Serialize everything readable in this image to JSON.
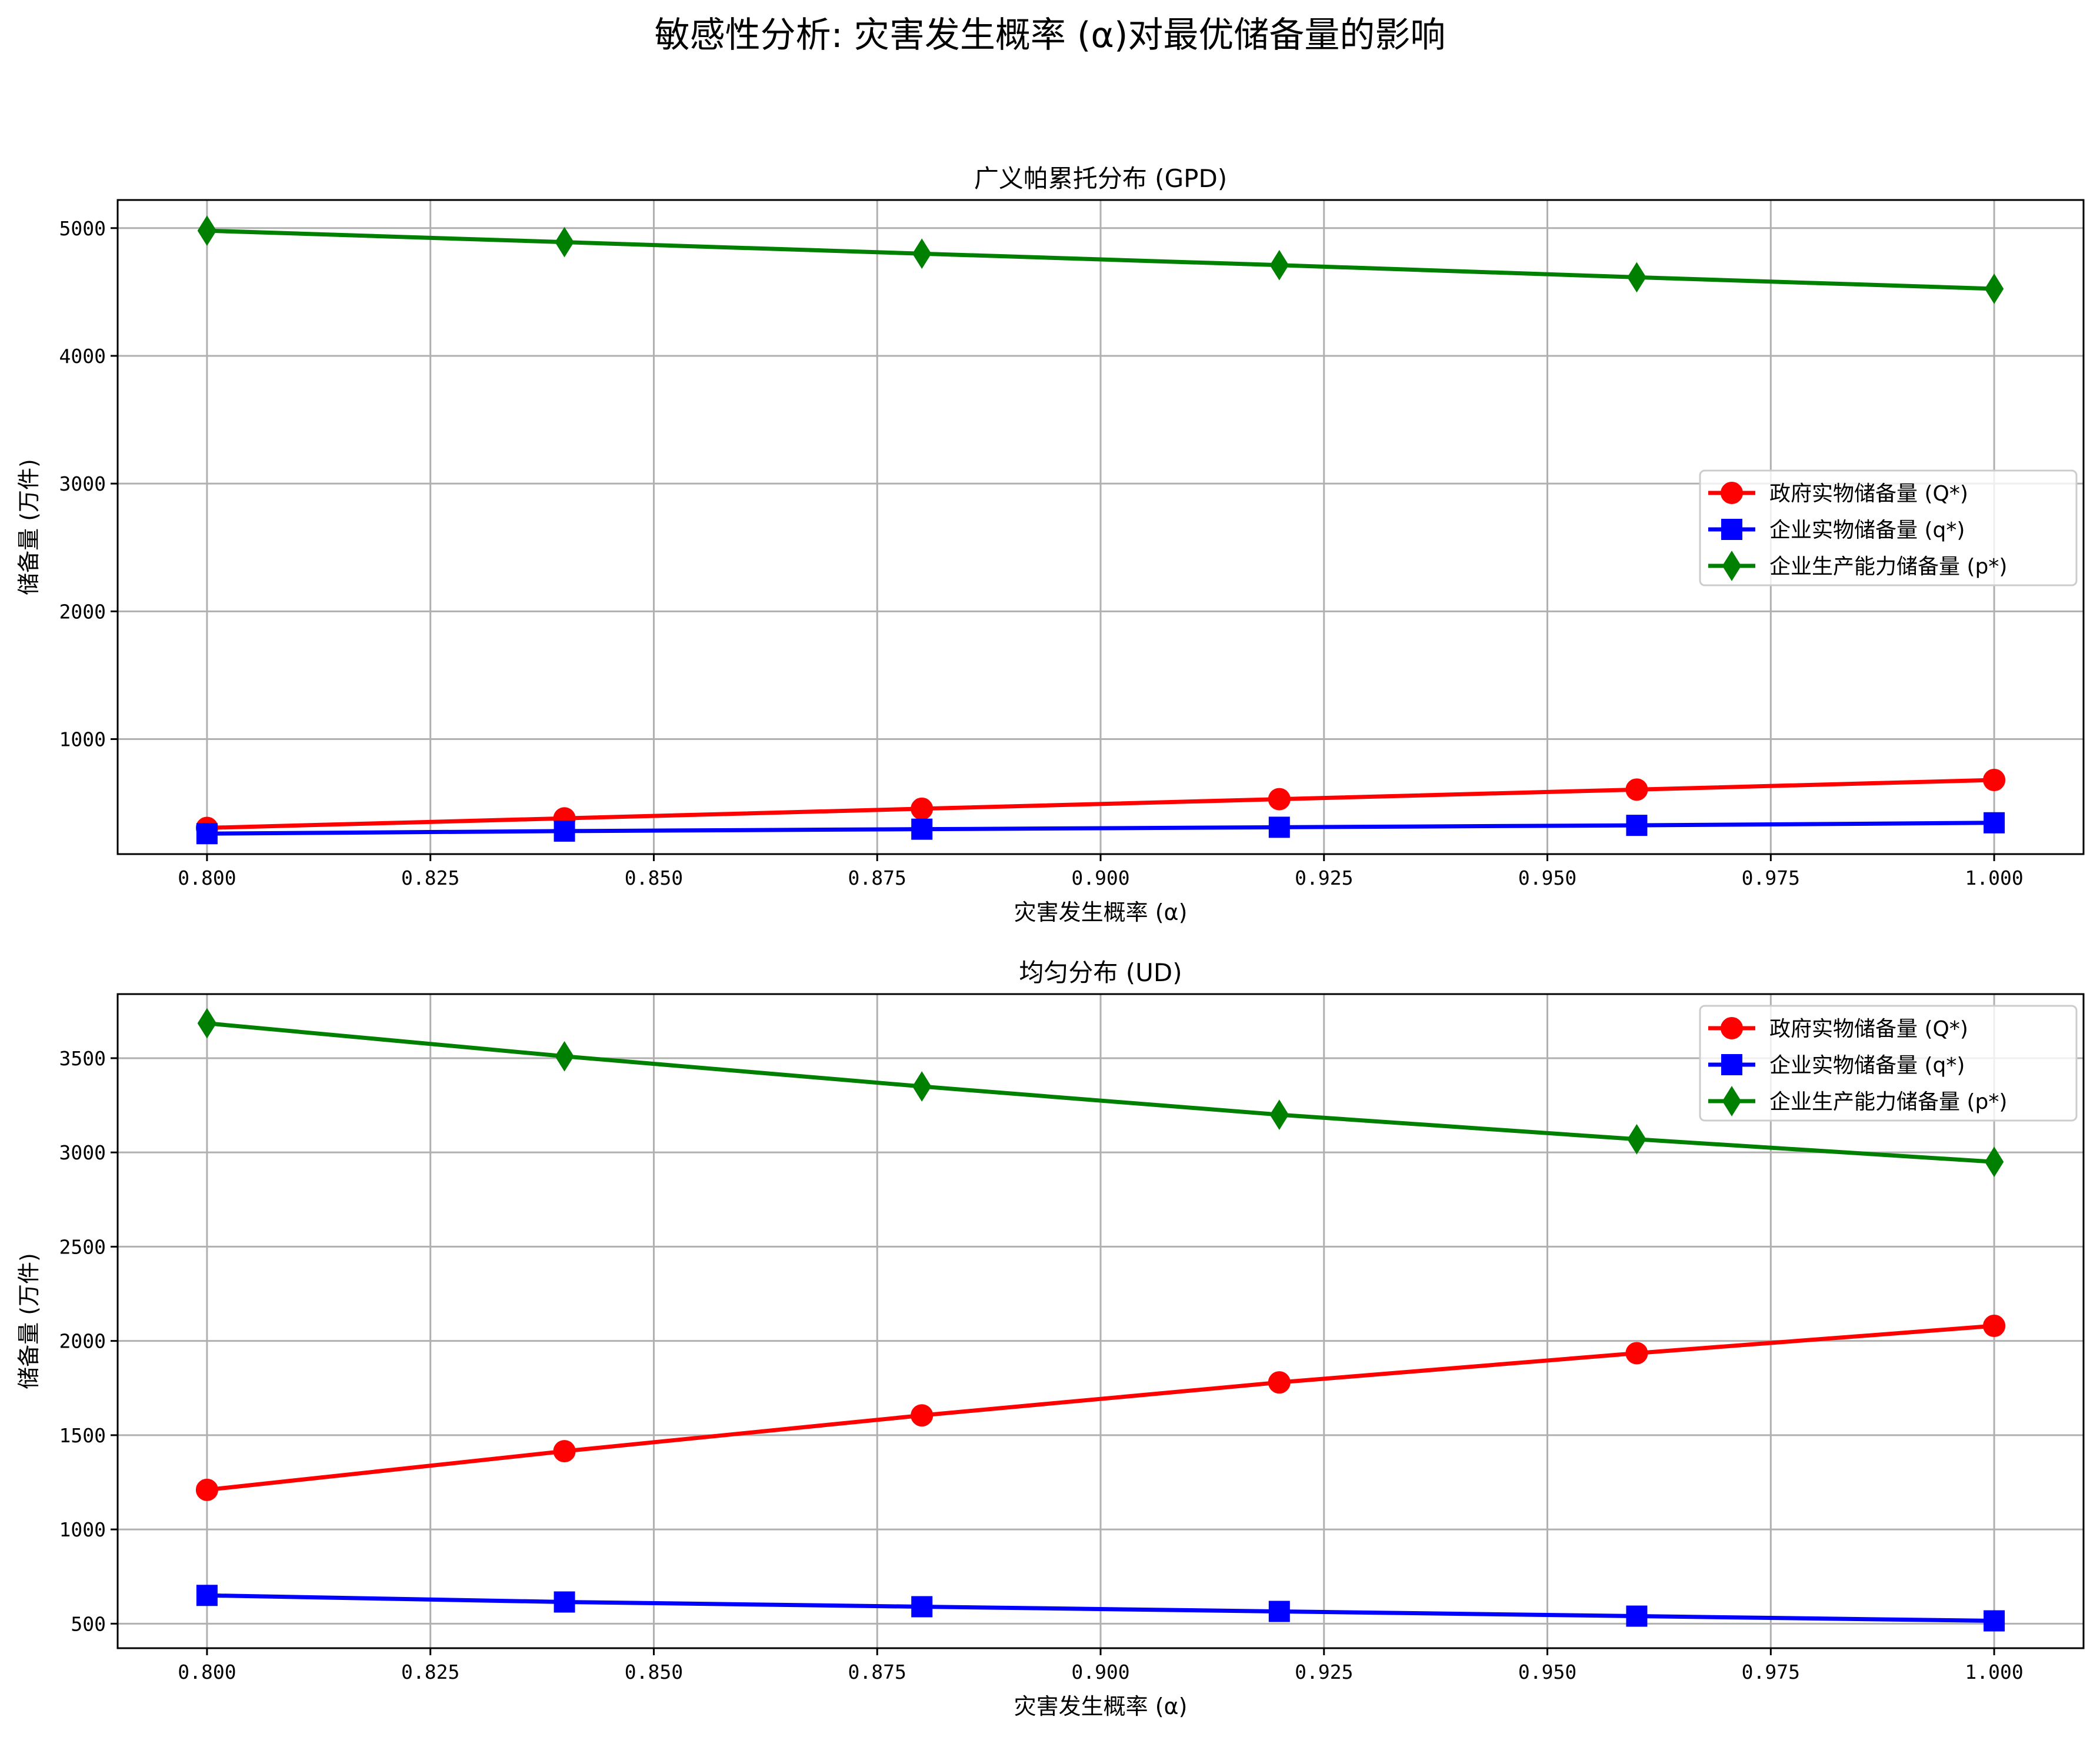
{
  "title": "敏感性分析: 灾害发生概率 (α)对最优储备量的影响",
  "colors": {
    "Q": "#ff0000",
    "q": "#0000ff",
    "p": "#008000"
  },
  "chart_data": [
    {
      "type": "line",
      "title": "广义帕累托分布 (GPD)",
      "xlabel": "灾害发生概率 (α)",
      "ylabel": "储备量 (万件)",
      "x": [
        0.8,
        0.84,
        0.88,
        0.92,
        0.96,
        1.0
      ],
      "xlim": [
        0.79,
        1.01
      ],
      "ylim": [
        100,
        5220
      ],
      "xticks": [
        0.8,
        0.825,
        0.85,
        0.875,
        0.9,
        0.925,
        0.95,
        0.975,
        1.0
      ],
      "xtick_labels": [
        "0.800",
        "0.825",
        "0.850",
        "0.875",
        "0.900",
        "0.925",
        "0.950",
        "0.975",
        "1.000"
      ],
      "yticks": [
        1000,
        2000,
        3000,
        4000,
        5000
      ],
      "ytick_labels": [
        "1000",
        "2000",
        "3000",
        "4000",
        "5000"
      ],
      "grid": true,
      "legend_position": "center-right",
      "series": [
        {
          "name": "政府实物储备量 (Q*)",
          "key": "Q",
          "marker": "circle",
          "values": [
            305,
            380,
            455,
            530,
            605,
            680
          ]
        },
        {
          "name": "企业实物储备量 (q*)",
          "key": "q",
          "marker": "square",
          "values": [
            260,
            280,
            295,
            310,
            325,
            345
          ]
        },
        {
          "name": "企业生产能力储备量 (p*)",
          "key": "p",
          "marker": "diamond",
          "values": [
            4980,
            4890,
            4800,
            4710,
            4615,
            4525
          ]
        }
      ]
    },
    {
      "type": "line",
      "title": "均匀分布 (UD)",
      "xlabel": "灾害发生概率 (α)",
      "ylabel": "储备量 (万件)",
      "x": [
        0.8,
        0.84,
        0.88,
        0.92,
        0.96,
        1.0
      ],
      "xlim": [
        0.79,
        1.01
      ],
      "ylim": [
        370,
        3840
      ],
      "xticks": [
        0.8,
        0.825,
        0.85,
        0.875,
        0.9,
        0.925,
        0.95,
        0.975,
        1.0
      ],
      "xtick_labels": [
        "0.800",
        "0.825",
        "0.850",
        "0.875",
        "0.900",
        "0.925",
        "0.950",
        "0.975",
        "1.000"
      ],
      "yticks": [
        500,
        1000,
        1500,
        2000,
        2500,
        3000,
        3500
      ],
      "ytick_labels": [
        "500",
        "1000",
        "1500",
        "2000",
        "2500",
        "3000",
        "3500"
      ],
      "grid": true,
      "legend_position": "top-right",
      "series": [
        {
          "name": "政府实物储备量 (Q*)",
          "key": "Q",
          "marker": "circle",
          "values": [
            1210,
            1415,
            1605,
            1780,
            1935,
            2080
          ]
        },
        {
          "name": "企业实物储备量 (q*)",
          "key": "q",
          "marker": "square",
          "values": [
            650,
            615,
            590,
            565,
            540,
            515
          ]
        },
        {
          "name": "企业生产能力储备量 (p*)",
          "key": "p",
          "marker": "diamond",
          "values": [
            3685,
            3510,
            3350,
            3200,
            3070,
            2950
          ]
        }
      ]
    }
  ]
}
